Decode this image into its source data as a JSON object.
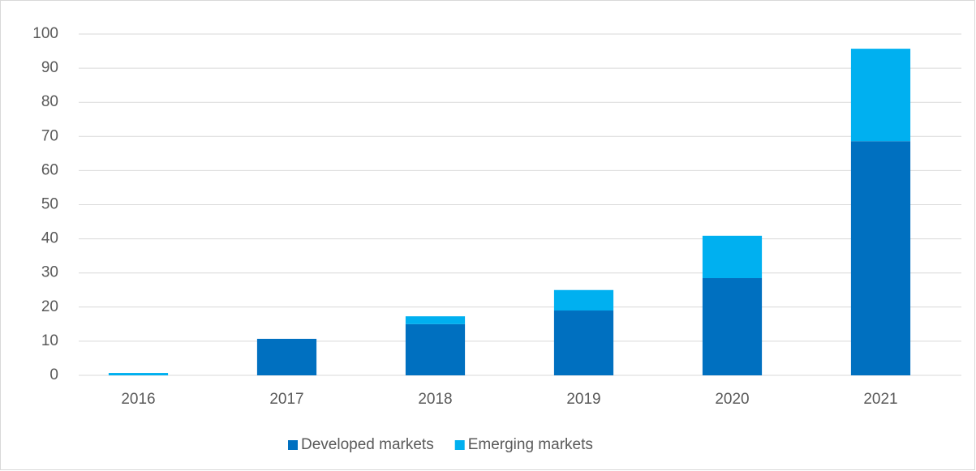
{
  "chart_data": {
    "type": "bar",
    "stacked": true,
    "categories": [
      "2016",
      "2017",
      "2018",
      "2019",
      "2020",
      "2021"
    ],
    "series": [
      {
        "name": "Developed markets",
        "color": "#0070c0",
        "values": [
          0,
          10.7,
          15,
          19,
          28.5,
          68.6
        ]
      },
      {
        "name": "Emerging markets",
        "color": "#00b0f0",
        "values": [
          0.7,
          0,
          2.3,
          6,
          12.4,
          27.1
        ]
      }
    ],
    "ylim": [
      0,
      100
    ],
    "yticks": [
      0,
      10,
      20,
      30,
      40,
      50,
      60,
      70,
      80,
      90,
      100
    ],
    "grid": true,
    "legend": "bottom"
  }
}
